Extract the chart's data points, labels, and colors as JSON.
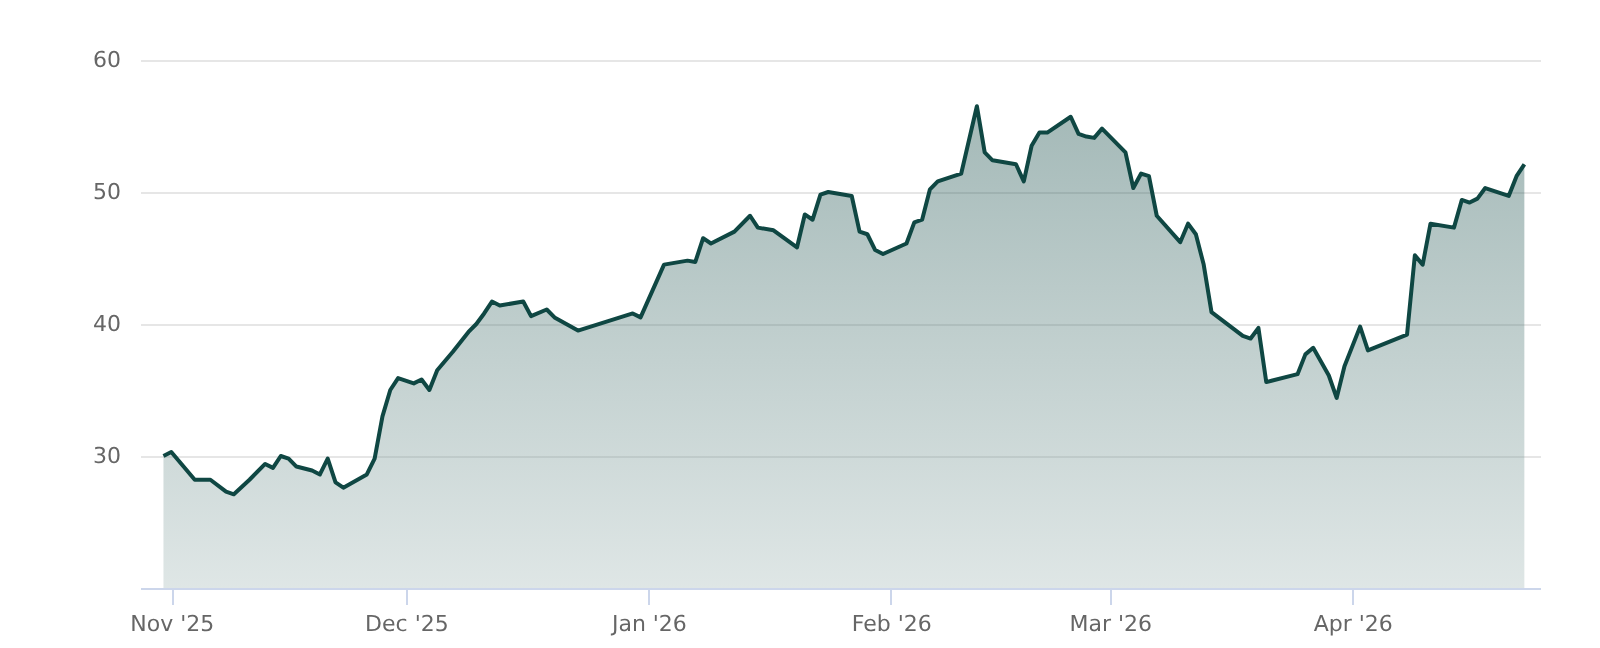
{
  "chart_data": {
    "type": "area",
    "xlim": [
      "2025-10-28",
      "2026-04-25"
    ],
    "ylim": [
      20,
      60
    ],
    "xticks": [
      {
        "value": "2025-11-01",
        "label": "Nov '25"
      },
      {
        "value": "2025-12-01",
        "label": "Dec '25"
      },
      {
        "value": "2026-01-01",
        "label": "Jan '26"
      },
      {
        "value": "2026-02-01",
        "label": "Feb '26"
      },
      {
        "value": "2026-03-01",
        "label": "Mar '26"
      },
      {
        "value": "2026-04-01",
        "label": "Apr '26"
      }
    ],
    "yticks": [
      30,
      40,
      50,
      60
    ],
    "grid": "y",
    "series": [
      {
        "color": "#0f4743",
        "x": [
          "2025-10-31",
          "2025-11-01",
          "2025-11-04",
          "2025-11-06",
          "2025-11-08",
          "2025-11-09",
          "2025-11-11",
          "2025-11-13",
          "2025-11-14",
          "2025-11-15",
          "2025-11-16",
          "2025-11-17",
          "2025-11-19",
          "2025-11-20",
          "2025-11-21",
          "2025-11-22",
          "2025-11-23",
          "2025-11-26",
          "2025-11-27",
          "2025-11-28",
          "2025-11-29",
          "2025-11-30",
          "2025-12-02",
          "2025-12-03",
          "2025-12-04",
          "2025-12-05",
          "2025-12-07",
          "2025-12-09",
          "2025-12-10",
          "2025-12-11",
          "2025-12-12",
          "2025-12-13",
          "2025-12-16",
          "2025-12-17",
          "2025-12-19",
          "2025-12-20",
          "2025-12-23",
          "2025-12-30",
          "2025-12-31",
          "2026-01-03",
          "2026-01-06",
          "2026-01-07",
          "2026-01-08",
          "2026-01-09",
          "2026-01-12",
          "2026-01-14",
          "2026-01-15",
          "2026-01-17",
          "2026-01-20",
          "2026-01-21",
          "2026-01-22",
          "2026-01-23",
          "2026-01-24",
          "2026-01-27",
          "2026-01-28",
          "2026-01-29",
          "2026-01-30",
          "2026-01-31",
          "2026-02-03",
          "2026-02-04",
          "2026-02-05",
          "2026-02-06",
          "2026-02-07",
          "2026-02-10",
          "2026-02-12",
          "2026-02-13",
          "2026-02-14",
          "2026-02-17",
          "2026-02-18",
          "2026-02-19",
          "2026-02-20",
          "2026-02-21",
          "2026-02-24",
          "2026-02-25",
          "2026-02-26",
          "2026-02-27",
          "2026-02-28",
          "2026-03-03",
          "2026-03-04",
          "2026-03-05",
          "2026-03-06",
          "2026-03-07",
          "2026-03-10",
          "2026-03-11",
          "2026-03-12",
          "2026-03-13",
          "2026-03-14",
          "2026-03-18",
          "2026-03-19",
          "2026-03-20",
          "2026-03-21",
          "2026-03-25",
          "2026-03-26",
          "2026-03-27",
          "2026-03-29",
          "2026-03-30",
          "2026-03-31",
          "2026-04-02",
          "2026-04-03",
          "2026-04-08",
          "2026-04-09",
          "2026-04-10",
          "2026-04-11",
          "2026-04-14",
          "2026-04-15",
          "2026-04-16",
          "2026-04-17",
          "2026-04-18",
          "2026-04-21",
          "2026-04-22",
          "2026-04-23"
        ],
        "values": [
          30.0,
          30.3,
          28.2,
          28.2,
          27.3,
          27.1,
          28.2,
          29.4,
          29.1,
          30.0,
          29.8,
          29.2,
          28.9,
          28.6,
          29.8,
          28.0,
          27.6,
          28.6,
          29.8,
          33.0,
          35.0,
          35.9,
          35.5,
          35.8,
          35.0,
          36.5,
          37.9,
          39.4,
          40.0,
          40.8,
          41.7,
          41.4,
          41.7,
          40.6,
          41.1,
          40.5,
          39.5,
          40.8,
          40.5,
          44.5,
          44.8,
          44.7,
          46.5,
          46.1,
          47.0,
          48.2,
          47.3,
          47.1,
          45.8,
          48.3,
          47.9,
          49.8,
          50.0,
          49.7,
          47.0,
          46.8,
          45.6,
          45.3,
          46.1,
          47.7,
          47.9,
          50.2,
          50.8,
          51.4,
          56.5,
          53.0,
          52.4,
          52.1,
          50.8,
          53.5,
          54.5,
          54.5,
          55.7,
          54.4,
          54.2,
          54.1,
          54.8,
          53.0,
          50.3,
          51.4,
          51.2,
          48.2,
          46.2,
          47.6,
          46.8,
          44.5,
          40.9,
          39.1,
          38.9,
          39.7,
          35.6,
          36.2,
          37.7,
          38.2,
          36.1,
          34.4,
          36.8,
          39.8,
          38.0,
          39.2,
          45.2,
          44.5,
          47.6,
          47.3,
          49.4,
          49.2,
          49.5,
          50.3,
          49.7,
          51.2,
          52.1
        ]
      }
    ]
  }
}
